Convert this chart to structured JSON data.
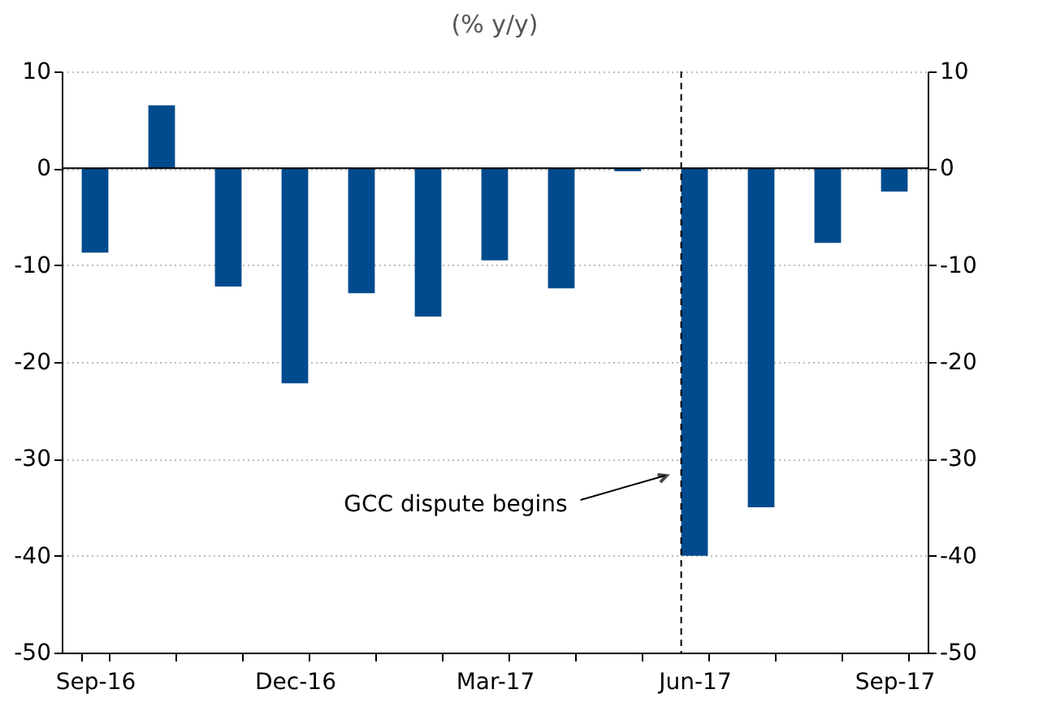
{
  "chart_data": {
    "type": "bar",
    "subtitle": "(% y/y)",
    "categories": [
      "Sep-16",
      null,
      null,
      "Dec-16",
      null,
      null,
      "Mar-17",
      null,
      null,
      "Jun-17",
      null,
      null,
      "Sep-17"
    ],
    "series": [
      {
        "color": "#004b8d",
        "values": [
          -8.7,
          6.5,
          -12.2,
          -22.2,
          -12.9,
          -15.3,
          -9.5,
          -12.4,
          -0.3,
          -40,
          -35,
          -7.7,
          -2.4
        ]
      }
    ],
    "ylim": [
      -50,
      10
    ],
    "yticks": [
      -50,
      -40,
      -30,
      -20,
      -10,
      0,
      10
    ],
    "y2lim": [
      -50,
      10
    ],
    "y2ticks": [
      -50,
      -40,
      -30,
      -20,
      -10,
      0,
      10
    ],
    "grid": "y",
    "ref_lines": [
      {
        "axis": "x",
        "value": "Jun-17",
        "line_style": "dashed",
        "color": "#000000"
      }
    ],
    "annotations": [
      "GCC dispute begins"
    ]
  }
}
